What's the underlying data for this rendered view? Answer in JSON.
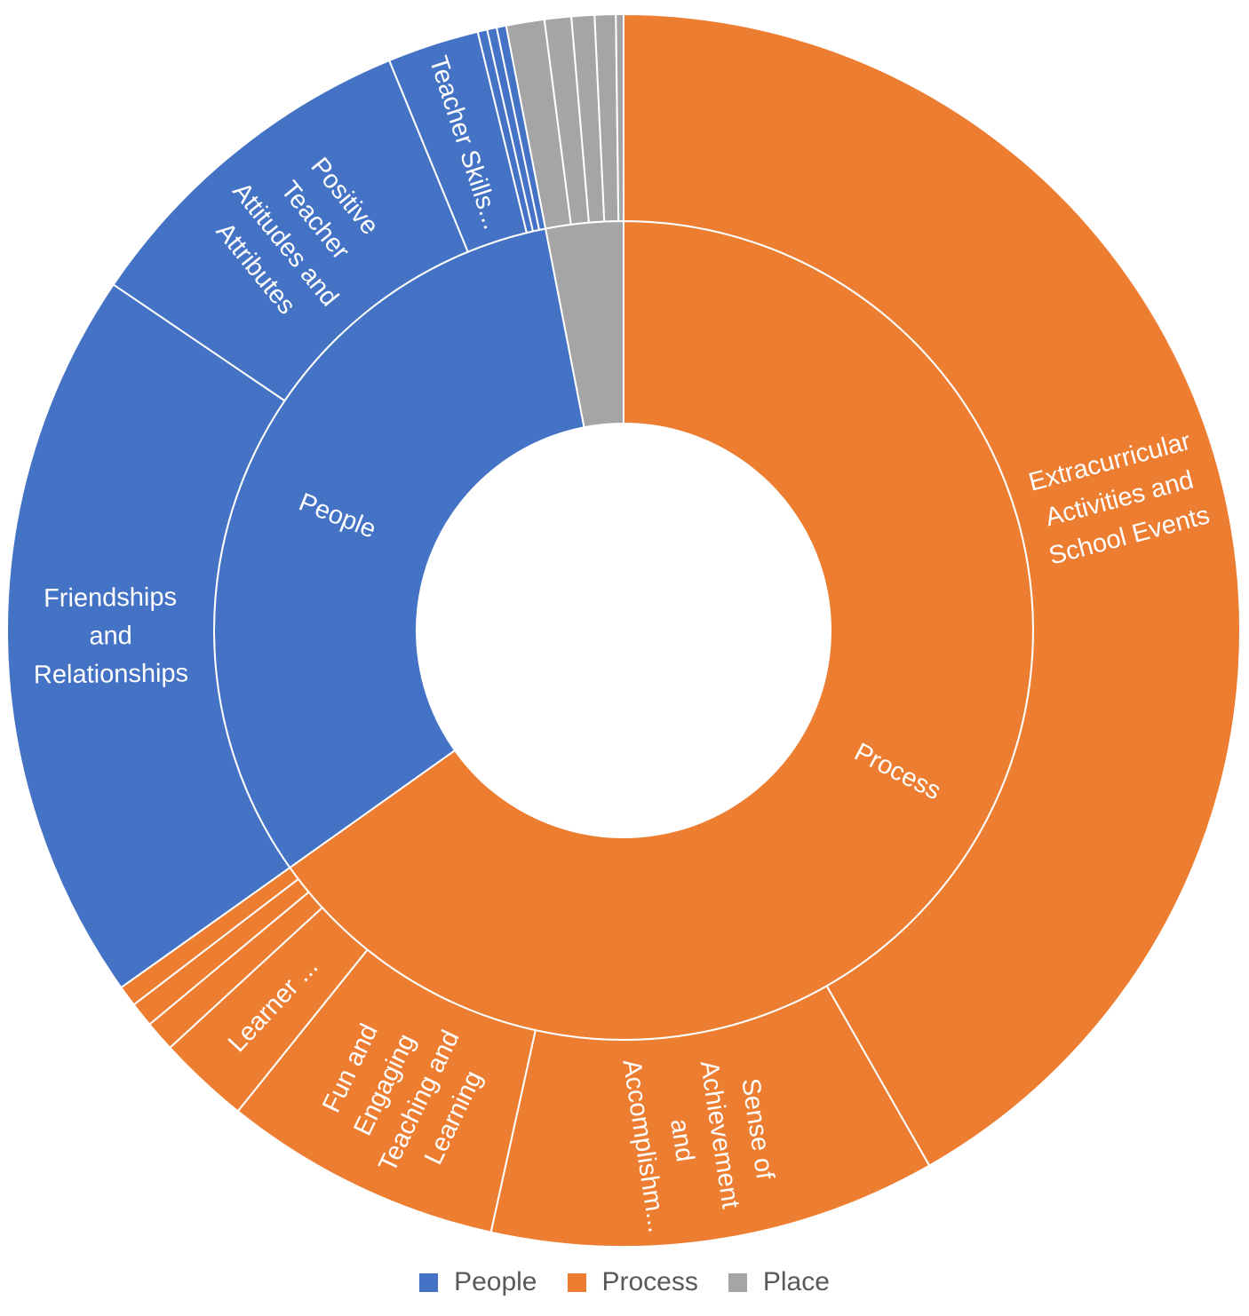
{
  "chart_data": {
    "type": "sunburst",
    "title": "",
    "background_color": "#FFFFFF",
    "label_text_color": "#FFFFFF",
    "separator_color": "#FFFFFF",
    "legend": {
      "position": "bottom",
      "text_color": "#595959",
      "entries": [
        {
          "label": "People",
          "color": "#4472C4"
        },
        {
          "label": "Process",
          "color": "#ED7D31"
        },
        {
          "label": "Place",
          "color": "#A5A5A5"
        }
      ]
    },
    "start_angle_deg": 0,
    "direction": "clockwise",
    "units": "percent_of_total",
    "series": [
      {
        "name": "Process",
        "label": "Process",
        "color": "#ED7D31",
        "children": [
          {
            "label": "Extracurricular Activities and School Events",
            "label_lines": [
              "Extracurricular",
              "Activities and",
              "School Events"
            ],
            "value": 41.7
          },
          {
            "label": "Sense of Achievement and Accomplishm...",
            "label_lines": [
              "Sense of",
              "Achievement",
              "and",
              "Accomplishm..."
            ],
            "value": 11.7
          },
          {
            "label": "Fun and Engaging Teaching and Learning",
            "label_lines": [
              "Fun and",
              "Engaging",
              "Teaching and",
              "Learning"
            ],
            "value": 7.3
          },
          {
            "label": "Learner ...",
            "label_lines": [
              "Learner ..."
            ],
            "value": 2.4
          },
          {
            "label": "",
            "value": 0.8
          },
          {
            "label": "",
            "value": 0.65
          },
          {
            "label": "",
            "value": 0.55
          }
        ]
      },
      {
        "name": "People",
        "label": "People",
        "color": "#4472C4",
        "children": [
          {
            "label": "Friendships and Relationships",
            "label_lines": [
              "Friendships",
              "and",
              "Relationships"
            ],
            "value": 19.3
          },
          {
            "label": "Positive Teacher Attitudes and Attributes",
            "label_lines": [
              "Positive",
              "Teacher",
              "Attitudes and",
              "Attributes"
            ],
            "value": 9.3
          },
          {
            "label": "Teacher Skills...",
            "label_lines": [
              "Teacher Skills..."
            ],
            "value": 2.4
          },
          {
            "label": "",
            "value": 0.25
          },
          {
            "label": "",
            "value": 0.25
          },
          {
            "label": "",
            "value": 0.25
          }
        ]
      },
      {
        "name": "Place",
        "label": "",
        "color": "#A5A5A5",
        "children": [
          {
            "label": "",
            "value": 1.0
          },
          {
            "label": "",
            "value": 0.7
          },
          {
            "label": "",
            "value": 0.6
          },
          {
            "label": "",
            "value": 0.55
          },
          {
            "label": "",
            "value": 0.2
          }
        ]
      }
    ]
  }
}
